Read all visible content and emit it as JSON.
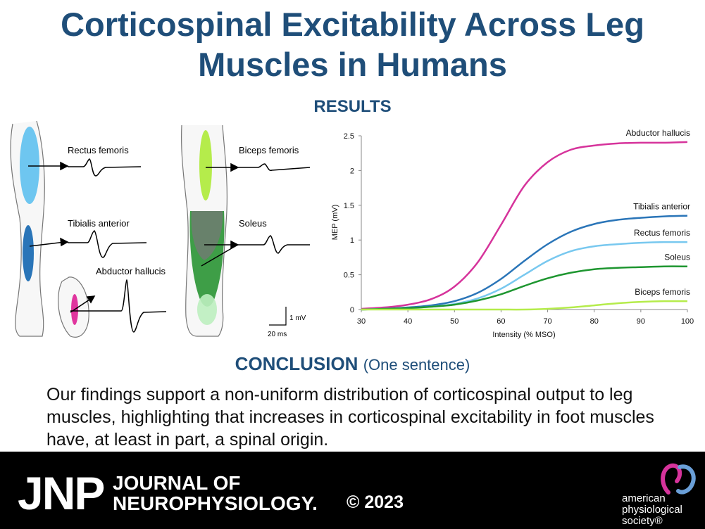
{
  "header": {
    "title_line1": "Corticospinal Excitability Across Leg",
    "title_line2": "Muscles in Humans",
    "results_label": "RESULTS"
  },
  "illustration": {
    "muscle_labels": [
      "Rectus femoris",
      "Tibialis anterior",
      "Abductor hallucis",
      "Biceps femoris",
      "Soleus"
    ],
    "scale_voltage": "1 mV",
    "scale_time": "20 ms"
  },
  "chart_data": {
    "type": "line",
    "title": "",
    "xlabel": "Intensity (% MSO)",
    "ylabel": "MEP (mV)",
    "xlim": [
      30,
      100
    ],
    "ylim": [
      0,
      2.5
    ],
    "xticks": [
      30,
      40,
      50,
      60,
      70,
      80,
      90,
      100
    ],
    "yticks": [
      0,
      0.5,
      1,
      1.5,
      2,
      2.5
    ],
    "ytick_labels": [
      "0",
      "0.5",
      "1",
      "1.5",
      "2",
      "2.5"
    ],
    "x": [
      30,
      35,
      40,
      45,
      50,
      55,
      60,
      65,
      70,
      75,
      80,
      85,
      90,
      95,
      100
    ],
    "series": [
      {
        "name": "Abductor hallucis",
        "color": "#d6339b",
        "values": [
          0.01,
          0.03,
          0.07,
          0.15,
          0.33,
          0.68,
          1.22,
          1.78,
          2.12,
          2.3,
          2.36,
          2.39,
          2.4,
          2.4,
          2.41
        ]
      },
      {
        "name": "Tibialis anterior",
        "color": "#2a75b8",
        "values": [
          0.0,
          0.01,
          0.03,
          0.06,
          0.12,
          0.24,
          0.44,
          0.7,
          0.94,
          1.12,
          1.23,
          1.29,
          1.32,
          1.34,
          1.35
        ]
      },
      {
        "name": "Rectus femoris",
        "color": "#78c8ef",
        "values": [
          0.0,
          0.01,
          0.02,
          0.04,
          0.08,
          0.16,
          0.3,
          0.5,
          0.7,
          0.84,
          0.91,
          0.94,
          0.96,
          0.97,
          0.97
        ]
      },
      {
        "name": "Soleus",
        "color": "#1e9630",
        "values": [
          0.0,
          0.01,
          0.02,
          0.04,
          0.07,
          0.13,
          0.22,
          0.34,
          0.45,
          0.53,
          0.58,
          0.6,
          0.61,
          0.62,
          0.62
        ]
      },
      {
        "name": "Biceps femoris",
        "color": "#b5ec4b",
        "values": [
          0.0,
          0.0,
          0.0,
          0.0,
          0.0,
          0.0,
          0.0,
          0.0,
          0.01,
          0.03,
          0.06,
          0.09,
          0.11,
          0.12,
          0.12
        ]
      }
    ]
  },
  "conclusion": {
    "heading": "CONCLUSION",
    "subheading": "(One sentence)",
    "text": "Our findings support a non-uniform distribution of corticospinal output to leg muscles, highlighting that increases in corticospinal excitability in foot muscles have, at least in part, a spinal origin."
  },
  "footer": {
    "jnp": "JNP",
    "journal_line1": "JOURNAL OF",
    "journal_line2": "NEUROPHYSIOLOGY.",
    "copyright": "© 2023",
    "society_line1": "american",
    "society_line2": "physiological",
    "society_line3": "society®"
  }
}
